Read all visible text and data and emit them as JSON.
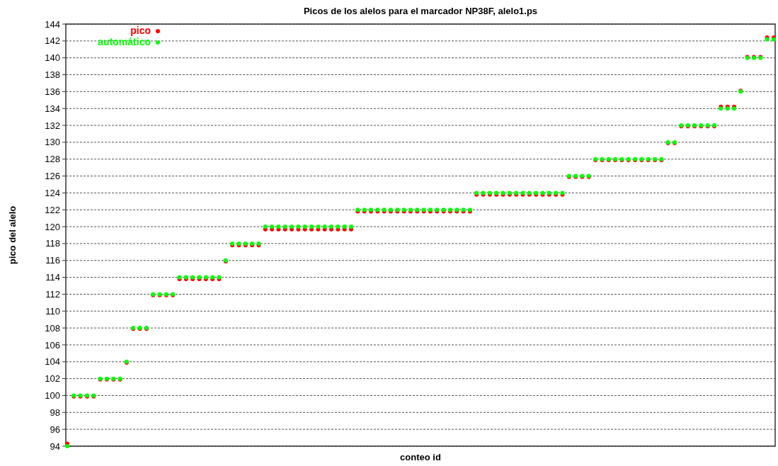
{
  "chart_data": {
    "type": "scatter",
    "title": "Picos de los alelos para el marcador NP38F, alelo1.ps",
    "xlabel": "conteo id",
    "ylabel": "pico del alelo",
    "categories": [
      null,
      null,
      null,
      null,
      null,
      null,
      null,
      null,
      null,
      null,
      null,
      null,
      null,
      null,
      null,
      null,
      null,
      null,
      null,
      null,
      null,
      null,
      null,
      null,
      null,
      null,
      null,
      null,
      null,
      null,
      null,
      null,
      null,
      null,
      null,
      null,
      null,
      null,
      null,
      null,
      null,
      null,
      null,
      null,
      null,
      null,
      null,
      null,
      null,
      null,
      null,
      null,
      null,
      null,
      null,
      null,
      null,
      null,
      null,
      null,
      null,
      null,
      null,
      null,
      null,
      null,
      null,
      null,
      null,
      null,
      null,
      null,
      null,
      null,
      null,
      null,
      null,
      null,
      null,
      null,
      null,
      null,
      null,
      null,
      null,
      null,
      null,
      null,
      null,
      null,
      null,
      null,
      null,
      null,
      null,
      null,
      null,
      null,
      null,
      null,
      null,
      null,
      null,
      null,
      null,
      null,
      null,
      null
    ],
    "series": [
      {
        "name": "pico",
        "color": "#ff0000",
        "values": [
          94.3,
          99.9,
          99.9,
          99.9,
          99.9,
          101.9,
          101.9,
          101.9,
          101.9,
          103.9,
          107.9,
          107.9,
          107.9,
          111.9,
          111.9,
          111.9,
          111.9,
          113.8,
          113.8,
          113.8,
          113.8,
          113.8,
          113.8,
          113.8,
          115.9,
          117.8,
          117.8,
          117.8,
          117.8,
          117.8,
          119.7,
          119.7,
          119.7,
          119.7,
          119.7,
          119.7,
          119.7,
          119.7,
          119.7,
          119.7,
          119.7,
          119.7,
          119.7,
          119.7,
          121.8,
          121.8,
          121.8,
          121.8,
          121.8,
          121.8,
          121.8,
          121.8,
          121.8,
          121.8,
          121.8,
          121.8,
          121.8,
          121.8,
          121.8,
          121.8,
          121.8,
          121.8,
          123.8,
          123.8,
          123.8,
          123.8,
          123.8,
          123.8,
          123.8,
          123.8,
          123.8,
          123.8,
          123.8,
          123.8,
          123.8,
          123.8,
          125.9,
          125.9,
          125.9,
          125.9,
          127.9,
          127.9,
          127.9,
          127.9,
          127.9,
          127.9,
          127.9,
          127.9,
          127.9,
          127.9,
          127.9,
          129.9,
          129.9,
          131.9,
          131.9,
          131.9,
          131.9,
          131.9,
          131.9,
          134.2,
          134.2,
          134.2,
          136.1,
          140.1,
          140.1,
          140.1,
          142.4,
          142.4
        ]
      },
      {
        "name": "automático",
        "color": "#00ff00",
        "values": [
          94,
          100,
          100,
          100,
          100,
          102,
          102,
          102,
          102,
          104,
          108,
          108,
          108,
          112,
          112,
          112,
          112,
          114,
          114,
          114,
          114,
          114,
          114,
          114,
          116,
          118,
          118,
          118,
          118,
          118,
          120,
          120,
          120,
          120,
          120,
          120,
          120,
          120,
          120,
          120,
          120,
          120,
          120,
          120,
          122,
          122,
          122,
          122,
          122,
          122,
          122,
          122,
          122,
          122,
          122,
          122,
          122,
          122,
          122,
          122,
          122,
          122,
          124,
          124,
          124,
          124,
          124,
          124,
          124,
          124,
          124,
          124,
          124,
          124,
          124,
          124,
          126,
          126,
          126,
          126,
          128,
          128,
          128,
          128,
          128,
          128,
          128,
          128,
          128,
          128,
          128,
          130,
          130,
          132,
          132,
          132,
          132,
          132,
          132,
          134,
          134,
          134,
          136,
          140,
          140,
          140,
          142.2,
          142.2
        ]
      }
    ],
    "ylim": [
      94,
      144
    ],
    "yticks": [
      94,
      96,
      98,
      100,
      102,
      104,
      106,
      108,
      110,
      112,
      114,
      116,
      118,
      120,
      122,
      124,
      126,
      128,
      130,
      132,
      134,
      136,
      138,
      140,
      142,
      144
    ],
    "grid": "y",
    "legend": "top left",
    "marker": "circle"
  }
}
